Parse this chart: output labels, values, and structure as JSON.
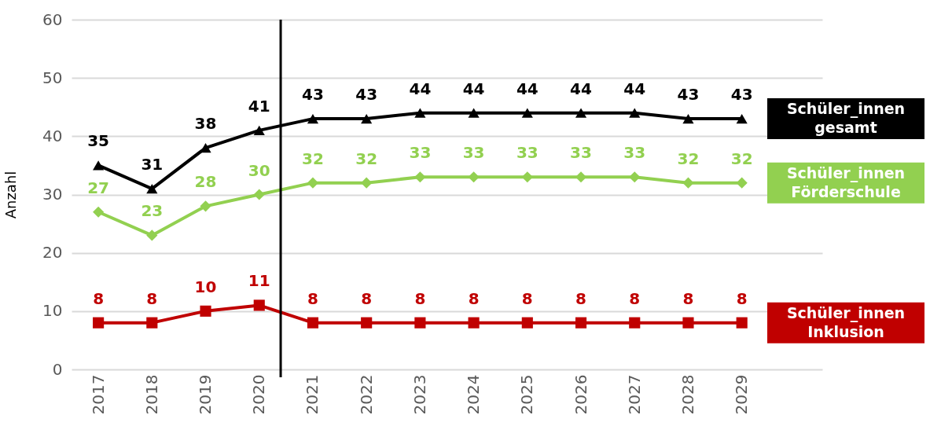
{
  "chart_data": {
    "type": "line",
    "ylabel": "Anzahl",
    "x": [
      2017,
      2018,
      2019,
      2020,
      2021,
      2022,
      2023,
      2024,
      2025,
      2026,
      2027,
      2028,
      2029
    ],
    "series": [
      {
        "name": "Schüler_innen gesamt",
        "color": "#000000",
        "marker": "triangle",
        "values": [
          35,
          31,
          38,
          41,
          43,
          43,
          44,
          44,
          44,
          44,
          44,
          43,
          43
        ]
      },
      {
        "name": "Schüler_innen Förderschule",
        "color": "#92d050",
        "marker": "diamond",
        "values": [
          27,
          23,
          28,
          30,
          32,
          32,
          33,
          33,
          33,
          33,
          33,
          32,
          32
        ]
      },
      {
        "name": "Schüler_innen Inklusion",
        "color": "#c00000",
        "marker": "square",
        "values": [
          8,
          8,
          10,
          11,
          8,
          8,
          8,
          8,
          8,
          8,
          8,
          8,
          8
        ]
      }
    ],
    "xlim": [
      2016.5,
      2030.5
    ],
    "xticks": [
      2017,
      2018,
      2019,
      2020,
      2021,
      2022,
      2023,
      2024,
      2025,
      2026,
      2027,
      2028,
      2029
    ],
    "ylim": [
      0,
      60
    ],
    "yticks": [
      0,
      10,
      20,
      30,
      40,
      50,
      60
    ],
    "ref_lines": [
      {
        "axis": "x",
        "value": 2020.4,
        "color": "#000000"
      }
    ],
    "grid": "y",
    "legend": "right",
    "data_labels": true
  }
}
